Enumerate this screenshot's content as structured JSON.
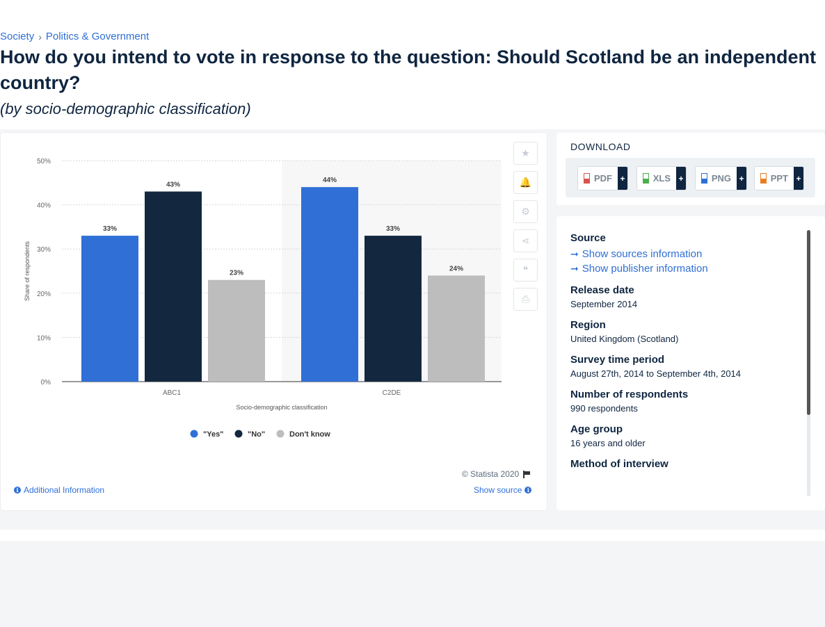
{
  "breadcrumb": {
    "items": [
      "Society",
      "Politics & Government"
    ]
  },
  "page": {
    "title": "How do you intend to vote in response to the question: Should Scotland be an independent country?",
    "subtitle": "(by socio-demographic classification)"
  },
  "chart_data": {
    "type": "bar",
    "categories": [
      "ABC1",
      "C2DE"
    ],
    "series": [
      {
        "name": "\"Yes\"",
        "values": [
          33,
          44
        ],
        "color": "#2f6fd6"
      },
      {
        "name": "\"No\"",
        "values": [
          43,
          33
        ],
        "color": "#13283f"
      },
      {
        "name": "Don't know",
        "values": [
          23,
          24
        ],
        "color": "#bdbdbd"
      }
    ],
    "value_labels": [
      [
        "33%",
        "44%"
      ],
      [
        "43%",
        "33%"
      ],
      [
        "23%",
        "24%"
      ]
    ],
    "y_ticks": [
      "0%",
      "10%",
      "20%",
      "30%",
      "40%",
      "50%"
    ],
    "ylim": [
      0,
      50
    ],
    "xlabel": "Socio-demographic classification",
    "ylabel": "Share of respondents",
    "grid": true,
    "legend_position": "bottom"
  },
  "toolbar": {
    "icons": [
      "star-icon",
      "bell-icon",
      "gear-icon",
      "share-icon",
      "quote-icon",
      "print-icon"
    ]
  },
  "footer": {
    "copyright": "© Statista 2020",
    "additional_info": "Additional Information",
    "show_source": "Show source"
  },
  "download": {
    "title": "DOWNLOAD",
    "buttons": [
      {
        "label": "PDF",
        "plus": "+",
        "color": "#d9534f"
      },
      {
        "label": "XLS",
        "plus": "+",
        "color": "#4caf50"
      },
      {
        "label": "PNG",
        "plus": "+",
        "color": "#2f6fd6"
      },
      {
        "label": "PPT",
        "plus": "+",
        "color": "#e67e22"
      }
    ]
  },
  "source": {
    "heading": "Source",
    "show_sources": "Show sources information",
    "show_publisher": "Show publisher information",
    "meta": [
      {
        "label": "Release date",
        "value": "September 2014"
      },
      {
        "label": "Region",
        "value": "United Kingdom (Scotland)"
      },
      {
        "label": "Survey time period",
        "value": "August 27th, 2014 to September 4th, 2014"
      },
      {
        "label": "Number of respondents",
        "value": "990 respondents"
      },
      {
        "label": "Age group",
        "value": "16 years and older"
      },
      {
        "label": "Method of interview",
        "value": ""
      }
    ]
  }
}
